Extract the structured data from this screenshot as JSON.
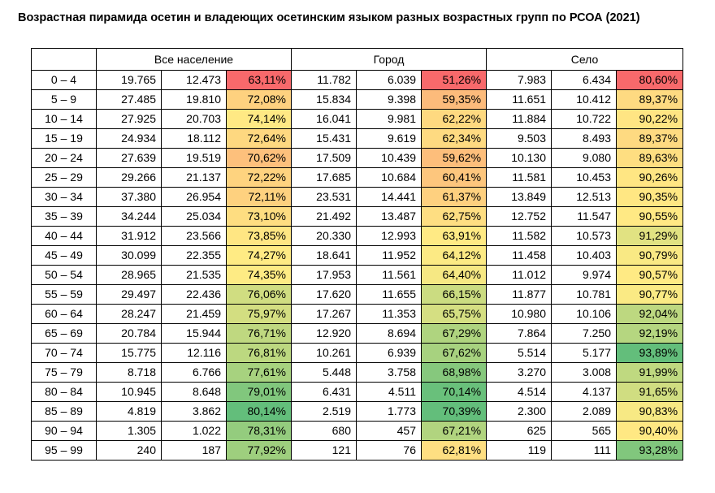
{
  "title": "Возрастная пирамида осетин и владеющих осетинским языком разных возрастных групп по РСОА (2021)",
  "groups": [
    "Все население",
    "Город",
    "Село"
  ],
  "scale_colors": {
    "low": "#f8696b",
    "mid": "#ffeb84",
    "high": "#63be7b"
  },
  "chart_data": {
    "type": "table",
    "title": "Возрастная пирамида осетин и владеющих осетинским языком разных возрастных групп по РСОА (2021)",
    "column_groups": [
      "Все население",
      "Город",
      "Село"
    ],
    "rows": [
      {
        "age": "0 – 4",
        "all": [
          "19.765",
          "12.473",
          "63,11%"
        ],
        "city": [
          "11.782",
          "6.039",
          "51,26%"
        ],
        "rural": [
          "7.983",
          "6.434",
          "80,60%"
        ]
      },
      {
        "age": "5 – 9",
        "all": [
          "27.485",
          "19.810",
          "72,08%"
        ],
        "city": [
          "15.834",
          "9.398",
          "59,35%"
        ],
        "rural": [
          "11.651",
          "10.412",
          "89,37%"
        ]
      },
      {
        "age": "10 – 14",
        "all": [
          "27.925",
          "20.703",
          "74,14%"
        ],
        "city": [
          "16.041",
          "9.981",
          "62,22%"
        ],
        "rural": [
          "11.884",
          "10.722",
          "90,22%"
        ]
      },
      {
        "age": "15 – 19",
        "all": [
          "24.934",
          "18.112",
          "72,64%"
        ],
        "city": [
          "15.431",
          "9.619",
          "62,34%"
        ],
        "rural": [
          "9.503",
          "8.493",
          "89,37%"
        ]
      },
      {
        "age": "20 – 24",
        "all": [
          "27.639",
          "19.519",
          "70,62%"
        ],
        "city": [
          "17.509",
          "10.439",
          "59,62%"
        ],
        "rural": [
          "10.130",
          "9.080",
          "89,63%"
        ]
      },
      {
        "age": "25 – 29",
        "all": [
          "29.266",
          "21.137",
          "72,22%"
        ],
        "city": [
          "17.685",
          "10.684",
          "60,41%"
        ],
        "rural": [
          "11.581",
          "10.453",
          "90,26%"
        ]
      },
      {
        "age": "30 – 34",
        "all": [
          "37.380",
          "26.954",
          "72,11%"
        ],
        "city": [
          "23.531",
          "14.441",
          "61,37%"
        ],
        "rural": [
          "13.849",
          "12.513",
          "90,35%"
        ]
      },
      {
        "age": "35 – 39",
        "all": [
          "34.244",
          "25.034",
          "73,10%"
        ],
        "city": [
          "21.492",
          "13.487",
          "62,75%"
        ],
        "rural": [
          "12.752",
          "11.547",
          "90,55%"
        ]
      },
      {
        "age": "40 – 44",
        "all": [
          "31.912",
          "23.566",
          "73,85%"
        ],
        "city": [
          "20.330",
          "12.993",
          "63,91%"
        ],
        "rural": [
          "11.582",
          "10.573",
          "91,29%"
        ]
      },
      {
        "age": "45 – 49",
        "all": [
          "30.099",
          "22.355",
          "74,27%"
        ],
        "city": [
          "18.641",
          "11.952",
          "64,12%"
        ],
        "rural": [
          "11.458",
          "10.403",
          "90,79%"
        ]
      },
      {
        "age": "50 – 54",
        "all": [
          "28.965",
          "21.535",
          "74,35%"
        ],
        "city": [
          "17.953",
          "11.561",
          "64,40%"
        ],
        "rural": [
          "11.012",
          "9.974",
          "90,57%"
        ]
      },
      {
        "age": "55 – 59",
        "all": [
          "29.497",
          "22.436",
          "76,06%"
        ],
        "city": [
          "17.620",
          "11.655",
          "66,15%"
        ],
        "rural": [
          "11.877",
          "10.781",
          "90,77%"
        ]
      },
      {
        "age": "60 – 64",
        "all": [
          "28.247",
          "21.459",
          "75,97%"
        ],
        "city": [
          "17.267",
          "11.353",
          "65,75%"
        ],
        "rural": [
          "10.980",
          "10.106",
          "92,04%"
        ]
      },
      {
        "age": "65 – 69",
        "all": [
          "20.784",
          "15.944",
          "76,71%"
        ],
        "city": [
          "12.920",
          "8.694",
          "67,29%"
        ],
        "rural": [
          "7.864",
          "7.250",
          "92,19%"
        ]
      },
      {
        "age": "70 – 74",
        "all": [
          "15.775",
          "12.116",
          "76,81%"
        ],
        "city": [
          "10.261",
          "6.939",
          "67,62%"
        ],
        "rural": [
          "5.514",
          "5.177",
          "93,89%"
        ]
      },
      {
        "age": "75 – 79",
        "all": [
          "8.718",
          "6.766",
          "77,61%"
        ],
        "city": [
          "5.448",
          "3.758",
          "68,98%"
        ],
        "rural": [
          "3.270",
          "3.008",
          "91,99%"
        ]
      },
      {
        "age": "80 – 84",
        "all": [
          "10.945",
          "8.648",
          "79,01%"
        ],
        "city": [
          "6.431",
          "4.511",
          "70,14%"
        ],
        "rural": [
          "4.514",
          "4.137",
          "91,65%"
        ]
      },
      {
        "age": "85 – 89",
        "all": [
          "4.819",
          "3.862",
          "80,14%"
        ],
        "city": [
          "2.519",
          "1.773",
          "70,39%"
        ],
        "rural": [
          "2.300",
          "2.089",
          "90,83%"
        ]
      },
      {
        "age": "90 – 94",
        "all": [
          "1.305",
          "1.022",
          "78,31%"
        ],
        "city": [
          "680",
          "457",
          "67,21%"
        ],
        "rural": [
          "625",
          "565",
          "90,40%"
        ]
      },
      {
        "age": "95 – 99",
        "all": [
          "240",
          "187",
          "77,92%"
        ],
        "city": [
          "121",
          "76",
          "62,81%"
        ],
        "rural": [
          "119",
          "111",
          "93,28%"
        ]
      }
    ]
  }
}
